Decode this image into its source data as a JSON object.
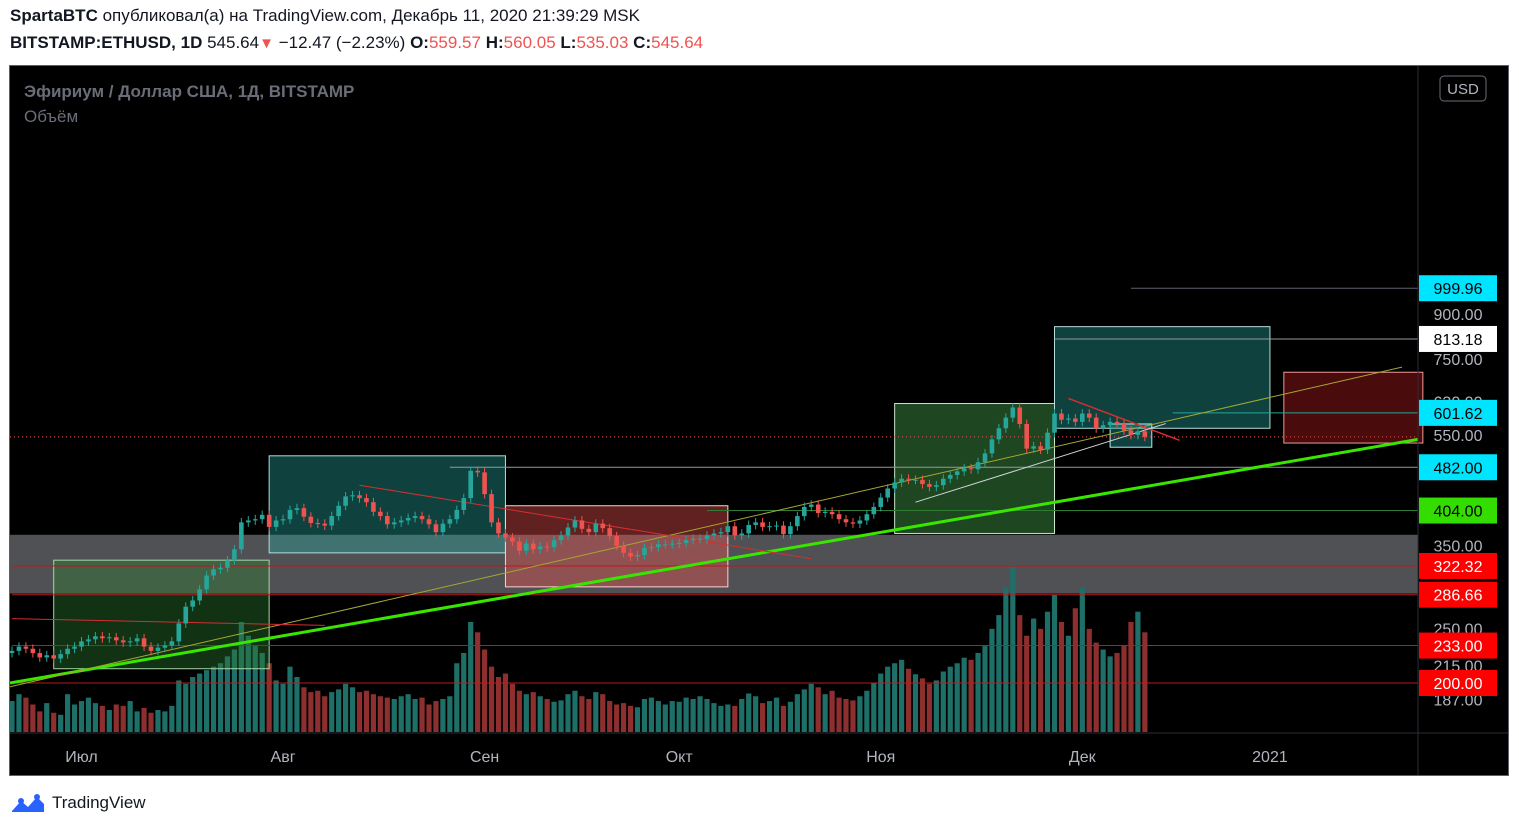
{
  "header": {
    "author": "SpartaBTC",
    "published_text": "опубликовал(а) на TradingView.com, Декабрь 11, 2020 21:39:29 MSK",
    "symbol": "BITSTAMP:ETHUSD, 1D",
    "price": "545.64",
    "change": "−12.47 (−2.23%)",
    "o_label": "O:",
    "o": "559.57",
    "h_label": "H:",
    "h": "560.05",
    "l_label": "L:",
    "l": "535.03",
    "c_label": "C:",
    "c": "545.64"
  },
  "chart_header": {
    "title": "Эфириум / Доллар США, 1Д, BITSTAMP",
    "indicator": "Объём"
  },
  "currency_button": "USD",
  "footer": {
    "brand": "TradingView"
  },
  "colors": {
    "up": "#26a69a",
    "down": "#ef5350",
    "trend": "#39e600",
    "cyan_label": "#00e5ff",
    "red_label": "#ff0000",
    "green_label": "#33dd00"
  },
  "chart_data": {
    "type": "candlestick",
    "title": "Эфириум / Доллар США, 1Д, BITSTAMP",
    "y_scale": "log",
    "y_ticks": [
      "187.00",
      "215.00",
      "250.00",
      "350.00",
      "550.00",
      "630.00",
      "750.00",
      "900.00"
    ],
    "x_ticks": [
      "Июл",
      "Авг",
      "Сен",
      "Окт",
      "Ноя",
      "Дек",
      "2021"
    ],
    "price_labels": [
      {
        "value": "999.96",
        "style": "cyan"
      },
      {
        "value": "813.18",
        "style": "white"
      },
      {
        "value": "601.62",
        "style": "cyan"
      },
      {
        "value": "482.00",
        "style": "cyan"
      },
      {
        "value": "404.00",
        "style": "green"
      },
      {
        "value": "322.32",
        "style": "red"
      },
      {
        "value": "286.66",
        "style": "red"
      },
      {
        "value": "233.00",
        "style": "red"
      },
      {
        "value": "200.00",
        "style": "red"
      }
    ],
    "last_close": 545.64,
    "closes": [
      228,
      232,
      230,
      226,
      222,
      224,
      221,
      225,
      230,
      232,
      237,
      239,
      242,
      240,
      241,
      238,
      236,
      237,
      240,
      232,
      228,
      231,
      233,
      237,
      255,
      273,
      280,
      293,
      310,
      318,
      320,
      330,
      345,
      385,
      388,
      390,
      397,
      378,
      388,
      390,
      405,
      408,
      394,
      384,
      383,
      380,
      395,
      412,
      428,
      430,
      425,
      418,
      402,
      395,
      382,
      385,
      388,
      392,
      395,
      390,
      382,
      370,
      383,
      390,
      405,
      425,
      475,
      472,
      432,
      385,
      368,
      362,
      356,
      343,
      353,
      345,
      349,
      348,
      358,
      365,
      377,
      388,
      375,
      370,
      383,
      376,
      364,
      350,
      340,
      335,
      337,
      347,
      348,
      352,
      352,
      353,
      354,
      358,
      360,
      360,
      365,
      368,
      370,
      379,
      365,
      368,
      381,
      385,
      378,
      379,
      380,
      367,
      379,
      395,
      410,
      414,
      400,
      402,
      398,
      390,
      385,
      383,
      388,
      398,
      410,
      426,
      442,
      453,
      460,
      458,
      458,
      450,
      445,
      448,
      460,
      467,
      474,
      480,
      478,
      492,
      510,
      540,
      565,
      590,
      615,
      575,
      520,
      525,
      518,
      555,
      600,
      585,
      588,
      580,
      600,
      590,
      565,
      572,
      580,
      575,
      560,
      550,
      558,
      545.64
    ],
    "volumes": [
      45,
      55,
      50,
      40,
      30,
      42,
      28,
      25,
      55,
      40,
      45,
      50,
      42,
      38,
      32,
      40,
      38,
      45,
      30,
      35,
      28,
      32,
      30,
      38,
      75,
      70,
      80,
      85,
      90,
      95,
      100,
      110,
      120,
      160,
      140,
      125,
      115,
      100,
      75,
      70,
      95,
      80,
      65,
      58,
      60,
      52,
      58,
      62,
      70,
      65,
      58,
      60,
      55,
      52,
      50,
      48,
      52,
      55,
      48,
      50,
      40,
      45,
      48,
      52,
      100,
      115,
      160,
      145,
      120,
      95,
      80,
      85,
      70,
      60,
      55,
      58,
      52,
      48,
      44,
      46,
      55,
      60,
      52,
      48,
      58,
      55,
      45,
      40,
      42,
      38,
      36,
      48,
      50,
      45,
      40,
      45,
      44,
      50,
      48,
      52,
      48,
      42,
      38,
      40,
      38,
      48,
      56,
      52,
      42,
      45,
      50,
      38,
      44,
      55,
      62,
      70,
      65,
      55,
      60,
      50,
      48,
      46,
      52,
      60,
      72,
      85,
      95,
      100,
      105,
      92,
      84,
      78,
      70,
      75,
      88,
      95,
      100,
      108,
      105,
      115,
      125,
      150,
      170,
      210,
      240,
      170,
      140,
      165,
      150,
      175,
      200,
      160,
      140,
      180,
      210,
      150,
      130,
      120,
      110,
      115,
      125,
      160,
      175,
      145
    ]
  }
}
